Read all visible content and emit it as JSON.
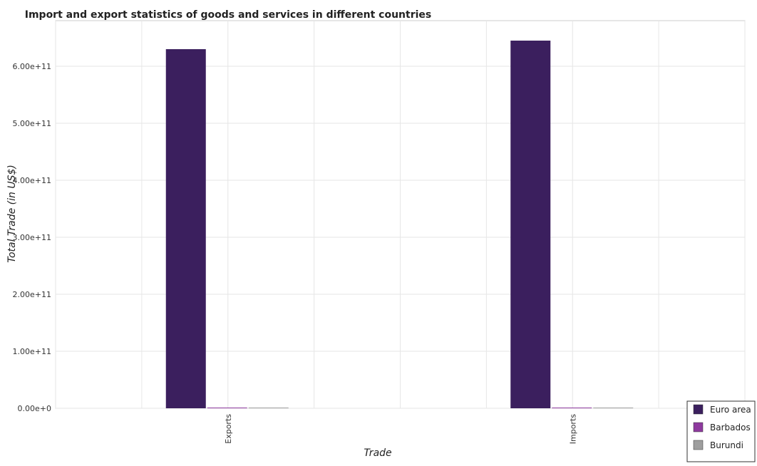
{
  "chart_data": {
    "type": "bar",
    "title": "Import and export statistics of goods and services in different countries",
    "xlabel": "Trade",
    "ylabel": "Total Trade (in US$)",
    "categories": [
      "Exports",
      "Imports"
    ],
    "ylim": [
      0,
      680000000000
    ],
    "yticks": [
      0,
      100000000000,
      200000000000,
      300000000000,
      400000000000,
      500000000000,
      600000000000
    ],
    "ytick_labels": [
      "0.00e+0",
      "1.00e+11",
      "2.00e+11",
      "3.00e+11",
      "4.00e+11",
      "5.00e+11",
      "6.00e+11"
    ],
    "grid": true,
    "legend_position": "bottom-right",
    "series": [
      {
        "name": "Euro area",
        "color": "#3b1f5e",
        "values": [
          630000000000,
          645000000000
        ]
      },
      {
        "name": "Barbados",
        "color": "#8e3a9e",
        "values": [
          1200000000,
          1000000000
        ]
      },
      {
        "name": "Burundi",
        "color": "#9e9e9e",
        "values": [
          20000000,
          40000000
        ]
      }
    ]
  }
}
